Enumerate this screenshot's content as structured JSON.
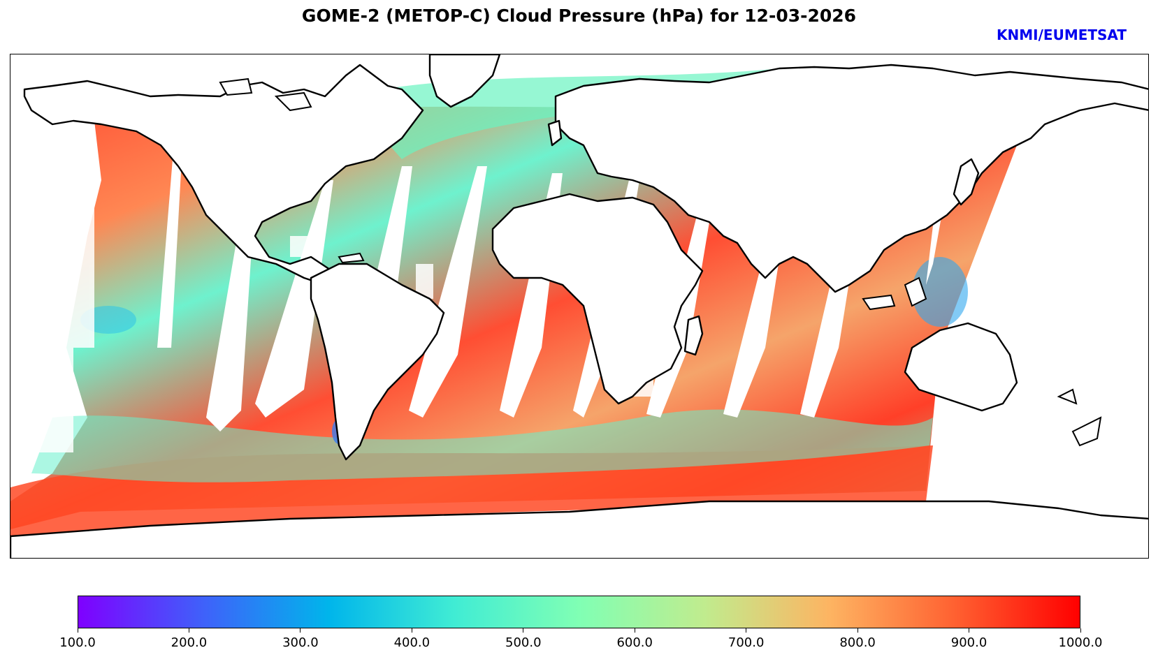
{
  "title": "GOME-2 (METOP-C) Cloud Pressure (hPa) for 12-03-2026",
  "credit": {
    "text": "KNMI/EUMETSAT",
    "color": "#0000ee"
  },
  "colorbar": {
    "min": 100.0,
    "max": 1000.0,
    "colors": [
      "#7f00ff",
      "#3f61fa",
      "#00b5eb",
      "#40ecd4",
      "#80ffb4",
      "#c0ec8e",
      "#fdb462",
      "#ff6131",
      "#ff0000"
    ],
    "ticks": [
      "100.0",
      "200.0",
      "300.0",
      "400.0",
      "500.0",
      "600.0",
      "700.0",
      "800.0",
      "900.0",
      "1000.0"
    ]
  },
  "map": {
    "variable": "Cloud Pressure (hPa)",
    "gap_count": 11
  }
}
